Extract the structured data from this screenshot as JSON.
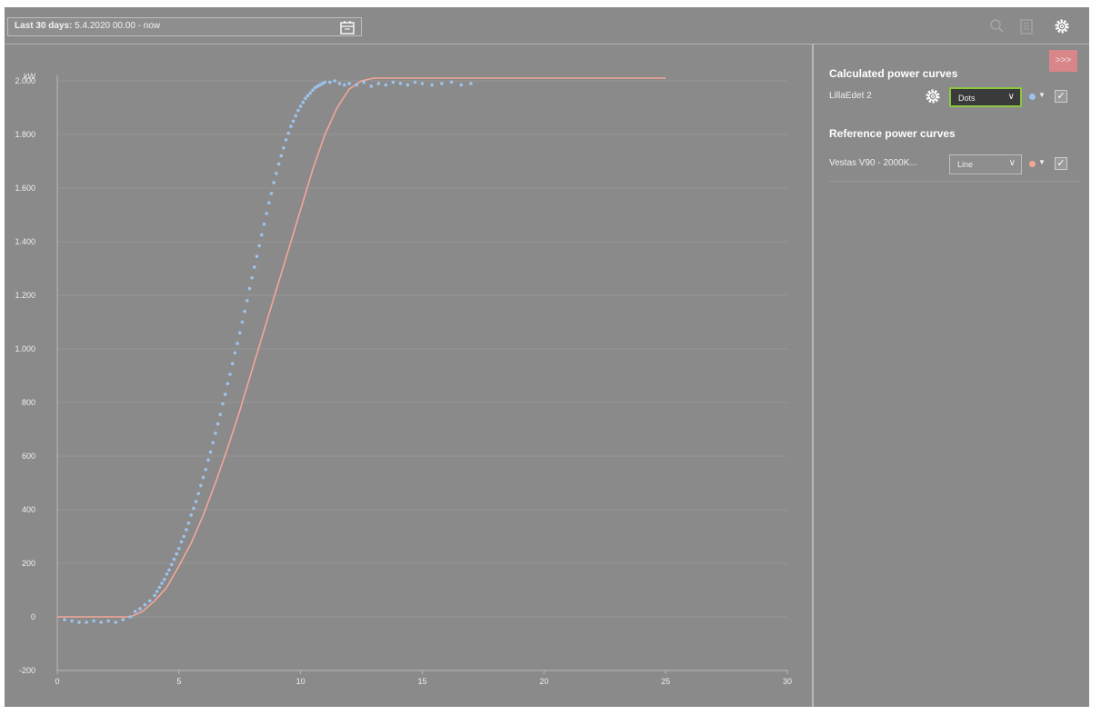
{
  "toolbar": {
    "date_range_prefix": "Last 30 days:",
    "date_range_value": "5.4.2020 00.00 - now",
    "icons": [
      "calendar-icon",
      "search-icon",
      "document-icon",
      "gear-icon"
    ]
  },
  "panel": {
    "collapse_label": ">>>",
    "calculated_title": "Calculated power curves",
    "calculated_rows": [
      {
        "name": "LillaEdet 2",
        "style": "Dots",
        "color": "#9cc3ef",
        "checked": true
      }
    ],
    "reference_title": "Reference power curves",
    "reference_rows": [
      {
        "name": "Vestas V90 - 2000K...",
        "style": "Line",
        "color": "#f2a798",
        "checked": true
      }
    ]
  },
  "colors": {
    "background": "#8a8a8a",
    "dots": "#9cc3ef",
    "line": "#f2a798",
    "select_highlight": "#8cc640",
    "collapse_button": "#d9868a"
  },
  "chart_data": {
    "type": "scatter",
    "ylabel": "kW",
    "xlim": [
      0,
      30
    ],
    "ylim": [
      -200,
      2000
    ],
    "x_ticks": [
      0,
      5,
      10,
      15,
      20,
      25,
      30
    ],
    "y_ticks": [
      -200,
      0,
      200,
      400,
      600,
      800,
      1000,
      1200,
      1400,
      1600,
      1800,
      2000
    ],
    "y_tick_labels": [
      "-200",
      "0",
      "200",
      "400",
      "600",
      "800",
      "1.000",
      "1.200",
      "1.400",
      "1.600",
      "1.800",
      "2.000"
    ],
    "grid": true,
    "series": [
      {
        "name": "LillaEdet 2",
        "kind": "dots",
        "x": [
          0.3,
          0.6,
          0.9,
          1.2,
          1.5,
          1.8,
          2.1,
          2.4,
          2.7,
          3.0,
          3.2,
          3.4,
          3.6,
          3.8,
          4.0,
          4.1,
          4.2,
          4.3,
          4.4,
          4.5,
          4.6,
          4.7,
          4.8,
          4.9,
          5.0,
          5.1,
          5.2,
          5.3,
          5.4,
          5.5,
          5.6,
          5.7,
          5.8,
          5.9,
          6.0,
          6.1,
          6.2,
          6.3,
          6.4,
          6.5,
          6.6,
          6.7,
          6.8,
          6.9,
          7.0,
          7.1,
          7.2,
          7.3,
          7.4,
          7.5,
          7.6,
          7.7,
          7.8,
          7.9,
          8.0,
          8.1,
          8.2,
          8.3,
          8.4,
          8.5,
          8.6,
          8.7,
          8.8,
          8.9,
          9.0,
          9.1,
          9.2,
          9.3,
          9.4,
          9.5,
          9.6,
          9.7,
          9.8,
          9.9,
          10.0,
          10.1,
          10.2,
          10.3,
          10.4,
          10.5,
          10.6,
          10.7,
          10.8,
          10.9,
          11.0,
          11.2,
          11.4,
          11.6,
          11.8,
          12.0,
          12.3,
          12.6,
          12.9,
          13.2,
          13.5,
          13.8,
          14.1,
          14.4,
          14.7,
          15.0,
          15.4,
          15.8,
          16.2,
          16.6,
          17.0
        ],
        "y": [
          -10,
          -15,
          -20,
          -20,
          -15,
          -20,
          -15,
          -20,
          -10,
          0,
          20,
          30,
          45,
          60,
          80,
          95,
          110,
          125,
          140,
          160,
          175,
          195,
          215,
          235,
          255,
          280,
          300,
          325,
          350,
          380,
          405,
          430,
          460,
          490,
          520,
          550,
          585,
          615,
          650,
          685,
          720,
          755,
          795,
          830,
          870,
          905,
          945,
          985,
          1020,
          1060,
          1100,
          1140,
          1180,
          1225,
          1265,
          1305,
          1345,
          1385,
          1425,
          1465,
          1505,
          1545,
          1580,
          1620,
          1655,
          1690,
          1720,
          1750,
          1780,
          1805,
          1830,
          1850,
          1870,
          1890,
          1905,
          1920,
          1935,
          1945,
          1955,
          1965,
          1975,
          1980,
          1985,
          1990,
          1995,
          1995,
          2000,
          1990,
          1985,
          1990,
          1985,
          1995,
          1980,
          1990,
          1985,
          1995,
          1990,
          1985,
          1995,
          1990,
          1985,
          1990,
          1995,
          1985,
          1990
        ]
      },
      {
        "name": "Vestas V90 - 2000K...",
        "kind": "line",
        "x": [
          0,
          1,
          2,
          3,
          3.5,
          4,
          4.5,
          5,
          5.5,
          6,
          6.5,
          7,
          7.5,
          8,
          8.5,
          9,
          9.5,
          10,
          10.5,
          11,
          11.5,
          12,
          12.5,
          13,
          14,
          15,
          20,
          25
        ],
        "y": [
          0,
          0,
          0,
          0,
          20,
          60,
          110,
          190,
          275,
          380,
          500,
          630,
          770,
          920,
          1070,
          1220,
          1370,
          1520,
          1670,
          1800,
          1900,
          1970,
          2000,
          2010,
          2010,
          2010,
          2010,
          2010
        ]
      }
    ]
  }
}
